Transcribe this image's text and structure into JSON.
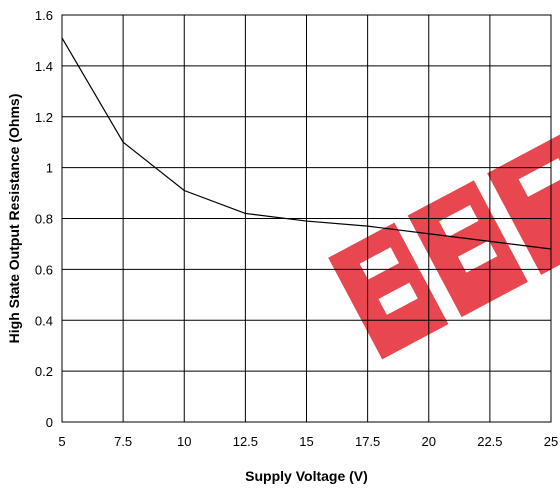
{
  "chart_data": {
    "type": "line",
    "title": "",
    "xlabel": "Supply Voltage (V)",
    "ylabel": "High State Output Resistance (Ohms)",
    "xlim": [
      5,
      25
    ],
    "ylim": [
      0,
      1.6
    ],
    "x_ticks": [
      5,
      7.5,
      10,
      12.5,
      15,
      17.5,
      20,
      22.5,
      25
    ],
    "x_tick_labels": [
      "5",
      "7.5",
      "10",
      "12.5",
      "15",
      "17.5",
      "20",
      "22.5",
      "25"
    ],
    "y_ticks": [
      0,
      0.2,
      0.4,
      0.6,
      0.8,
      1,
      1.2,
      1.4,
      1.6
    ],
    "y_tick_labels": [
      "0",
      "0.2",
      "0.4",
      "0.6",
      "0.8",
      "1",
      "1.2",
      "1.4",
      "1.6"
    ],
    "grid": true,
    "line_color": "#000000",
    "watermark_color": "#e8474f",
    "series": [
      {
        "x": [
          5,
          7.5,
          10,
          12.5,
          15,
          17.5,
          20,
          22.5,
          25
        ],
        "y": [
          1.51,
          1.1,
          0.91,
          0.82,
          0.79,
          0.77,
          0.74,
          0.71,
          0.68
        ]
      }
    ]
  }
}
